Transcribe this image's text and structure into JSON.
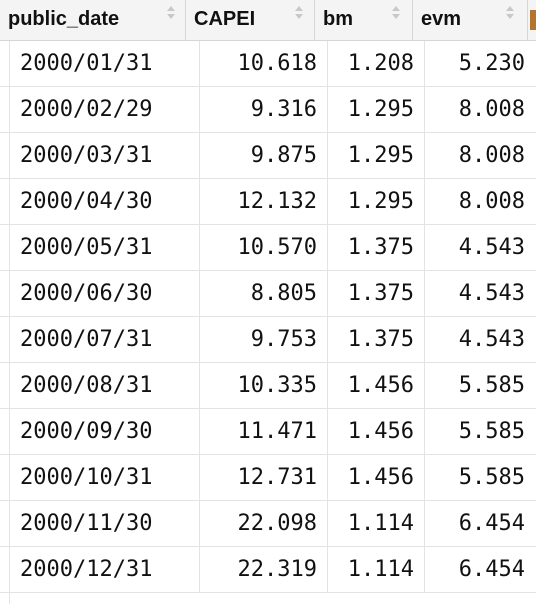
{
  "table": {
    "columns": [
      {
        "label": "public_date"
      },
      {
        "label": "CAPEI"
      },
      {
        "label": "bm"
      },
      {
        "label": "evm"
      }
    ],
    "rows": [
      [
        "2000/01/31",
        "10.618",
        "1.208",
        "5.230"
      ],
      [
        "2000/02/29",
        "9.316",
        "1.295",
        "8.008"
      ],
      [
        "2000/03/31",
        "9.875",
        "1.295",
        "8.008"
      ],
      [
        "2000/04/30",
        "12.132",
        "1.295",
        "8.008"
      ],
      [
        "2000/05/31",
        "10.570",
        "1.375",
        "4.543"
      ],
      [
        "2000/06/30",
        "8.805",
        "1.375",
        "4.543"
      ],
      [
        "2000/07/31",
        "9.753",
        "1.375",
        "4.543"
      ],
      [
        "2000/08/31",
        "10.335",
        "1.456",
        "5.585"
      ],
      [
        "2000/09/30",
        "11.471",
        "1.456",
        "5.585"
      ],
      [
        "2000/10/31",
        "12.731",
        "1.456",
        "5.585"
      ],
      [
        "2000/11/30",
        "22.098",
        "1.114",
        "6.454"
      ],
      [
        "2000/12/31",
        "22.319",
        "1.114",
        "6.454"
      ]
    ]
  }
}
